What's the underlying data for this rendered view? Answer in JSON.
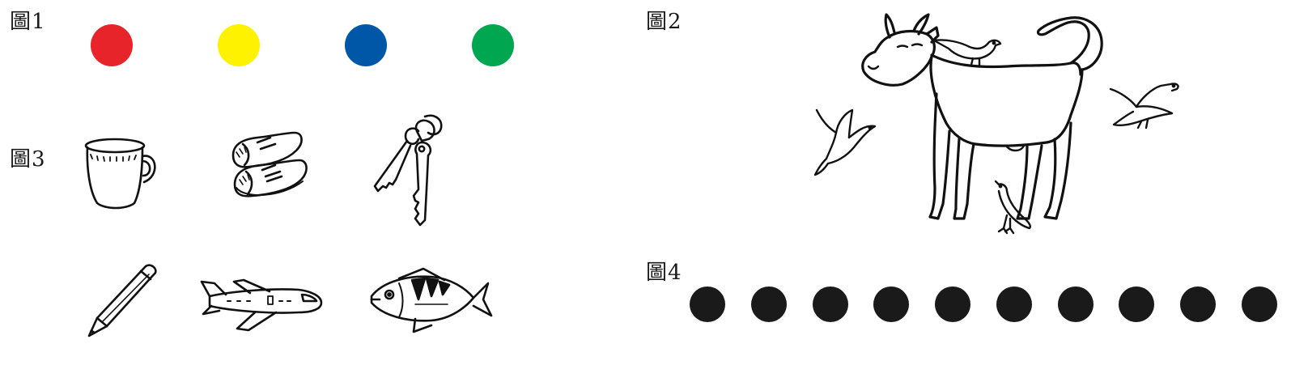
{
  "figure1": {
    "label": "圖1",
    "dots": [
      {
        "name": "red-dot",
        "color": "#E8242B"
      },
      {
        "name": "yellow-dot",
        "color": "#FFF200"
      },
      {
        "name": "blue-dot",
        "color": "#0057A8"
      },
      {
        "name": "green-dot",
        "color": "#00A650"
      }
    ]
  },
  "figure2": {
    "label": "圖2",
    "scene": [
      "cow-icon",
      "bird-icon",
      "bird-icon",
      "bird-icon",
      "bird-icon"
    ]
  },
  "figure3": {
    "label": "圖3",
    "objects": [
      "mug-icon",
      "shoes-icon",
      "keys-icon",
      "pencil-icon",
      "airplane-icon",
      "fish-icon"
    ]
  },
  "figure4": {
    "label": "圖4",
    "dot_color": "#1A1A1A",
    "dot_count": 10
  }
}
